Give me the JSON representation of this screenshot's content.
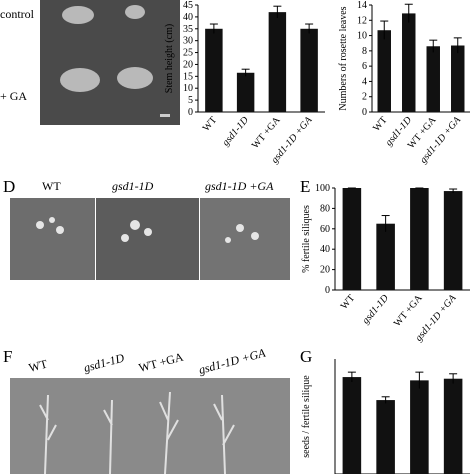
{
  "figure": {
    "top_labels": [
      "control",
      "+ GA"
    ],
    "d": {
      "panel_label": "D",
      "labels": [
        "WT",
        "gsd1-1D",
        "gsd1-1D +GA"
      ]
    },
    "f": {
      "panel_label": "F",
      "labels": [
        "WT",
        "gsd1-1D",
        "WT +GA",
        "gsd1-1D +GA"
      ]
    }
  },
  "chart_data": [
    {
      "type": "bar",
      "y_label": "Stem height (cm)",
      "categories": [
        "WT",
        "gsd1-1D",
        "WT +GA",
        "gsd1-1D +GA"
      ],
      "values": [
        35,
        16.5,
        42,
        35
      ],
      "errors": [
        2,
        1.5,
        2.5,
        2
      ],
      "color": "#111111",
      "ylim": [
        0,
        45
      ],
      "yticks": [
        0,
        5,
        10,
        15,
        20,
        25,
        30,
        35,
        40,
        45
      ]
    },
    {
      "type": "bar",
      "y_label": "Numbers of rosette leaves",
      "categories": [
        "WT",
        "gsd1-1D",
        "WT +GA",
        "gsd1-1D +GA"
      ],
      "values": [
        10.7,
        12.9,
        8.6,
        8.7
      ],
      "errors": [
        1.2,
        1.2,
        0.8,
        1.0
      ],
      "color": "#111111",
      "ylim": [
        0,
        14
      ],
      "yticks": [
        0,
        2,
        4,
        6,
        8,
        10,
        12,
        14
      ]
    },
    {
      "type": "bar",
      "panel_label": "E",
      "y_label": "% fertile siliques",
      "categories": [
        "WT",
        "gsd1-1D",
        "WT +GA",
        "gsd1-1D +GA"
      ],
      "values": [
        100,
        65,
        100,
        97
      ],
      "errors": [
        0,
        8,
        0,
        2
      ],
      "color": "#111111",
      "ylim": [
        0,
        100
      ],
      "yticks": [
        0,
        20,
        40,
        60,
        80,
        100
      ]
    },
    {
      "type": "bar",
      "panel_label": "G",
      "y_label": "seeds / fertile silique",
      "values": [
        59,
        45,
        57,
        58
      ],
      "errors": [
        3,
        2,
        5,
        3
      ],
      "color": "#111111",
      "ylim": [
        0,
        70
      ]
    }
  ]
}
